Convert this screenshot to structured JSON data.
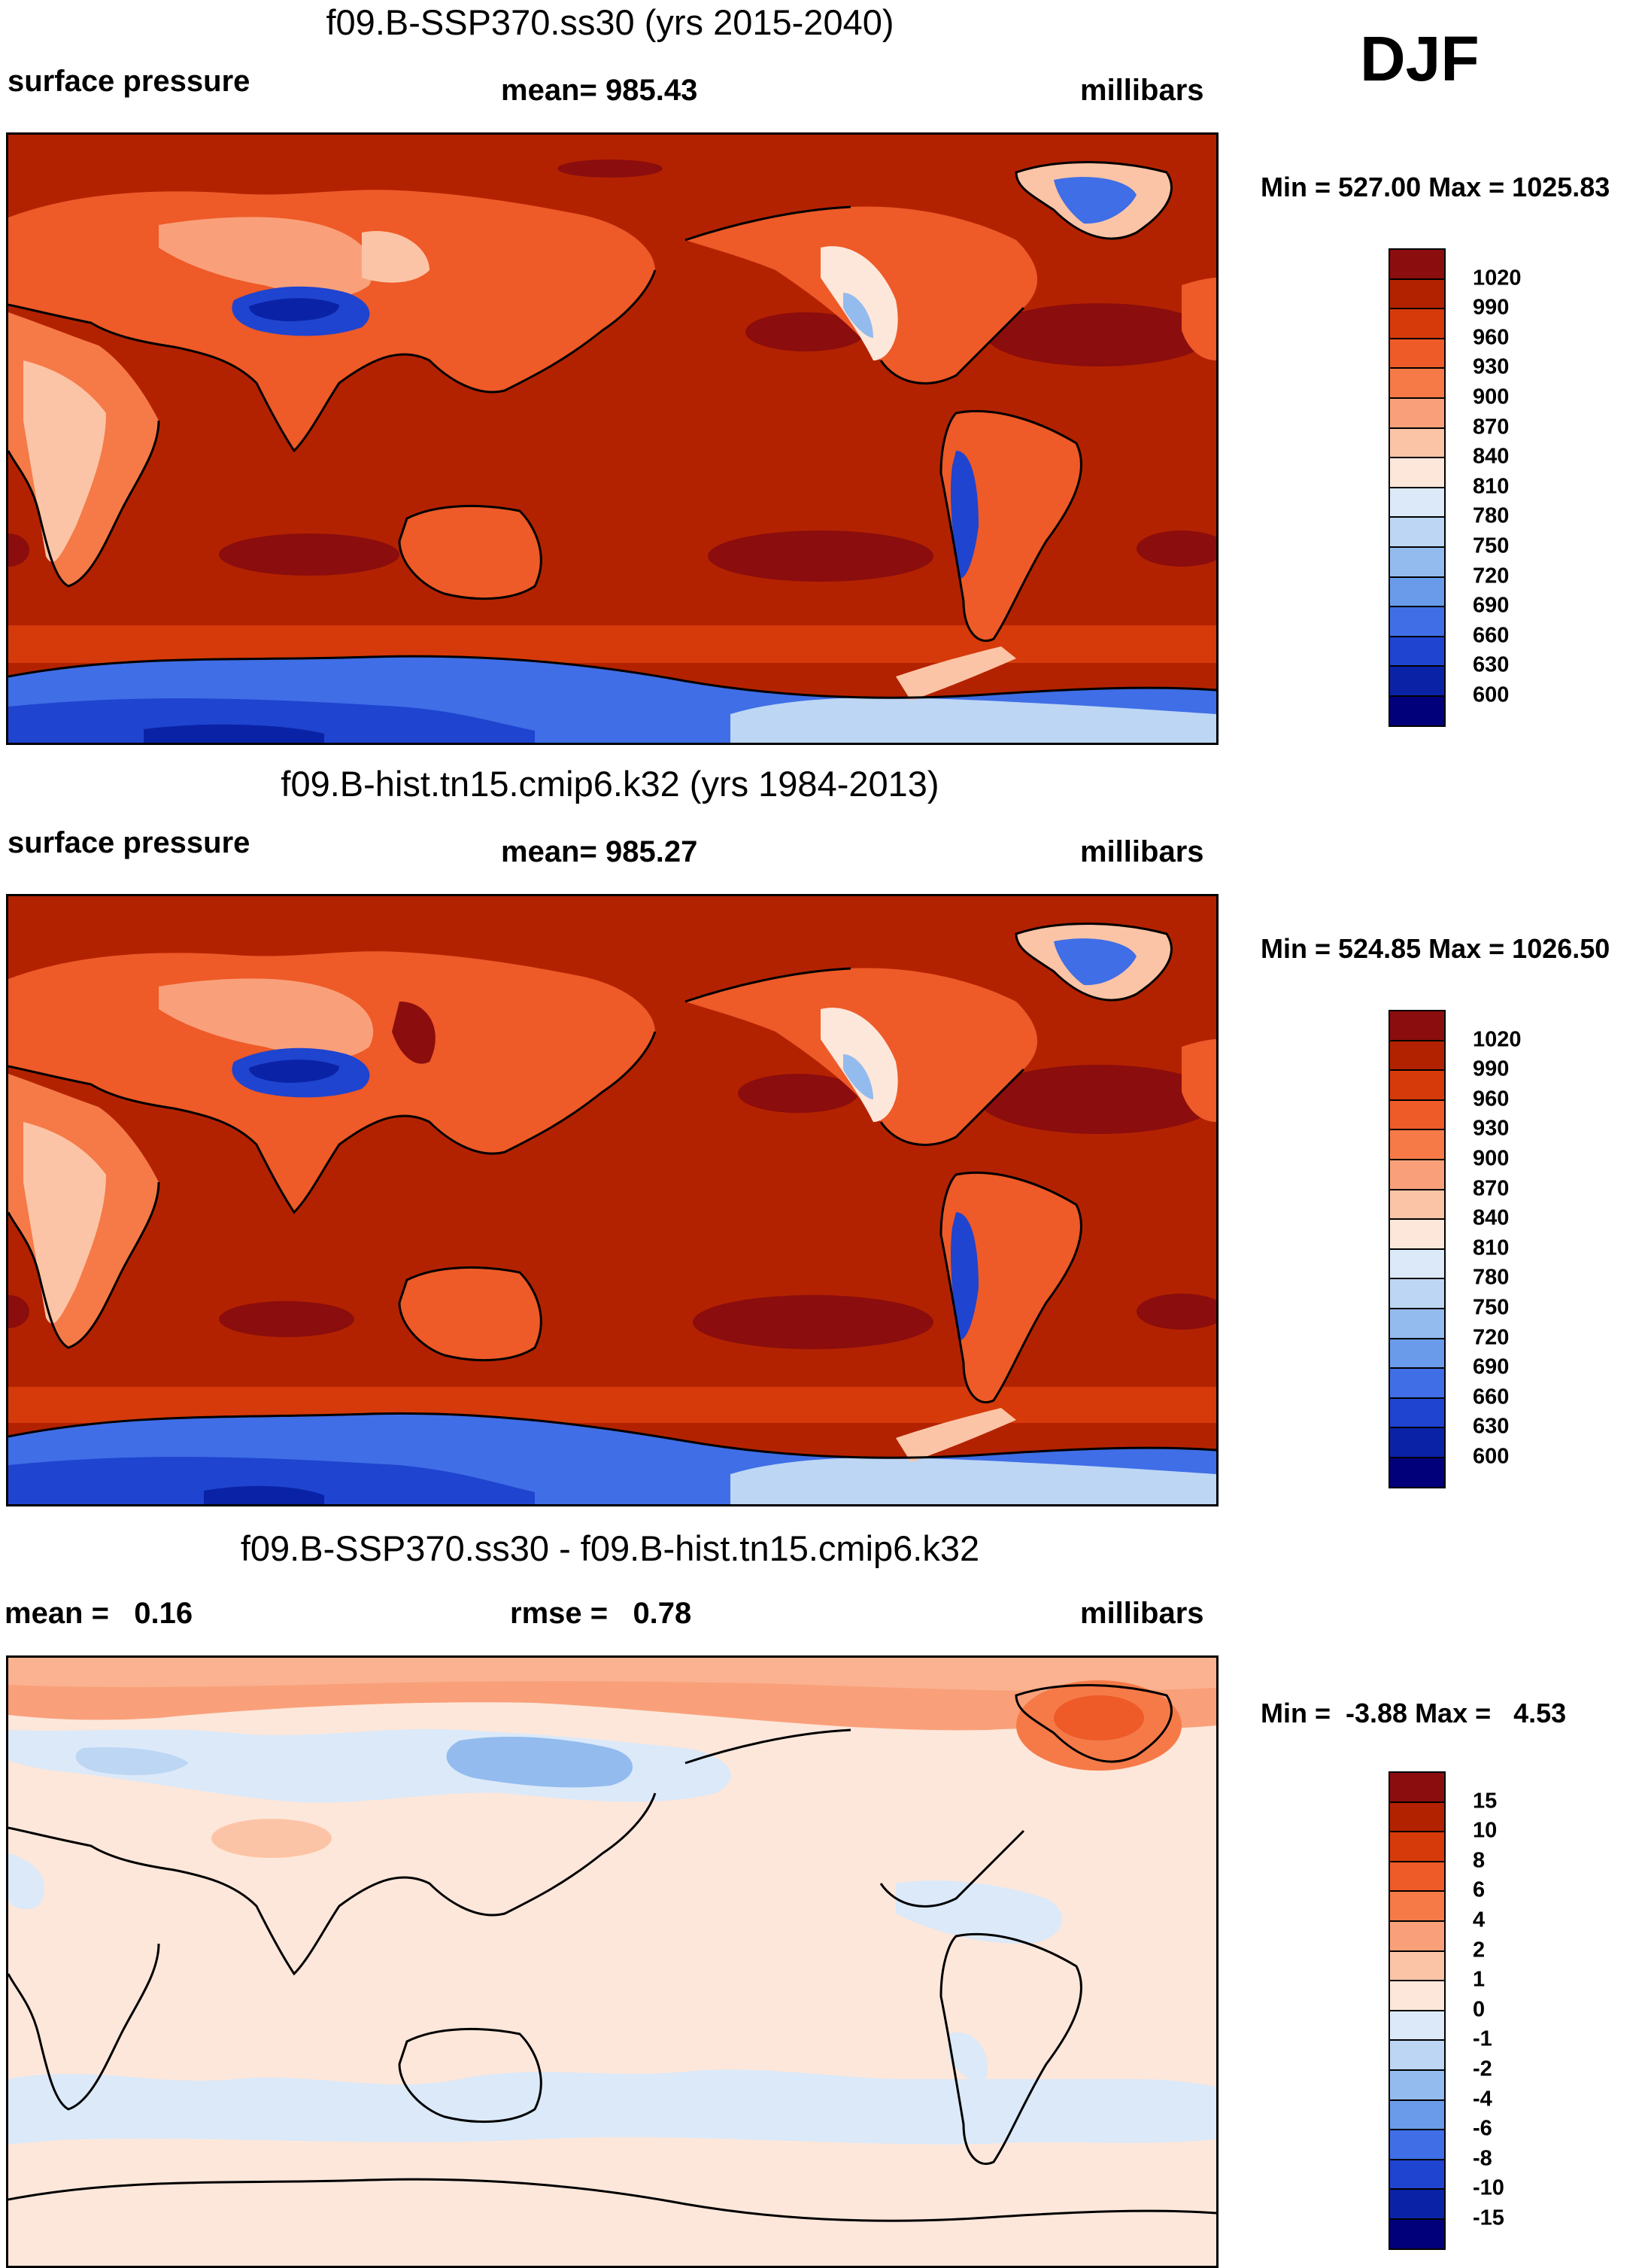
{
  "season": "DJF",
  "panels": [
    {
      "title": "f09.B-SSP370.ss30 (yrs 2015-2040)",
      "left_label": "surface pressure",
      "center_label": "mean= 985.43",
      "units": "millibars",
      "minmax": "Min = 527.00 Max = 1025.83",
      "colorbar": {
        "labels": [
          "1020",
          "990",
          "960",
          "930",
          "900",
          "870",
          "840",
          "810",
          "780",
          "750",
          "720",
          "690",
          "660",
          "630",
          "600"
        ],
        "colors": [
          "#8b0d0d",
          "#b32200",
          "#d63a0a",
          "#ee5a28",
          "#f57a48",
          "#f9a07a",
          "#fcc4a6",
          "#fde7da",
          "#dbe9f9",
          "#bcd6f4",
          "#93bbee",
          "#6a9bea",
          "#3f6ee6",
          "#1f44cf",
          "#0a23a6",
          "#01007a"
        ]
      },
      "map": {
        "ocean": "#b32200",
        "land": "#ee6a3c",
        "highland": "#fcc4a6",
        "plateau": "#1f44cf",
        "antarctica": "#1f44cf",
        "highs": "#8b0d0d"
      }
    },
    {
      "title": "f09.B-hist.tn15.cmip6.k32 (yrs 1984-2013)",
      "left_label": "surface pressure",
      "center_label": "mean= 985.27",
      "units": "millibars",
      "minmax": "Min = 524.85 Max = 1026.50",
      "colorbar": {
        "labels": [
          "1020",
          "990",
          "960",
          "930",
          "900",
          "870",
          "840",
          "810",
          "780",
          "750",
          "720",
          "690",
          "660",
          "630",
          "600"
        ],
        "colors": [
          "#8b0d0d",
          "#b32200",
          "#d63a0a",
          "#ee5a28",
          "#f57a48",
          "#f9a07a",
          "#fcc4a6",
          "#fde7da",
          "#dbe9f9",
          "#bcd6f4",
          "#93bbee",
          "#6a9bea",
          "#3f6ee6",
          "#1f44cf",
          "#0a23a6",
          "#01007a"
        ]
      },
      "map": {
        "ocean": "#b32200",
        "land": "#ee6a3c",
        "highland": "#fcc4a6",
        "plateau": "#1f44cf",
        "antarctica": "#1f44cf",
        "highs": "#8b0d0d"
      }
    },
    {
      "title": "f09.B-SSP370.ss30 - f09.B-hist.tn15.cmip6.k32",
      "left_label": "mean =   0.16",
      "center_label": "rmse =   0.78",
      "units": "millibars",
      "minmax": "Min =  -3.88 Max =   4.53",
      "colorbar": {
        "labels": [
          "15",
          "10",
          "8",
          "6",
          "4",
          "2",
          "1",
          "0",
          "-1",
          "-2",
          "-4",
          "-6",
          "-8",
          "-10",
          "-15"
        ],
        "colors": [
          "#8b0d0d",
          "#b32200",
          "#d63a0a",
          "#ee5a28",
          "#f57a48",
          "#f9a07a",
          "#fcc4a6",
          "#fde7da",
          "#dbe9f9",
          "#bcd6f4",
          "#93bbee",
          "#6a9bea",
          "#3f6ee6",
          "#1f44cf",
          "#0a23a6",
          "#01007a"
        ]
      },
      "map": {
        "ocean": "#fde7da",
        "land": "#fde7da",
        "arctic": "#f9a07a",
        "negative": "#dbe9f9",
        "negative_strong": "#93bbee",
        "greenland": "#f57a48"
      }
    }
  ]
}
